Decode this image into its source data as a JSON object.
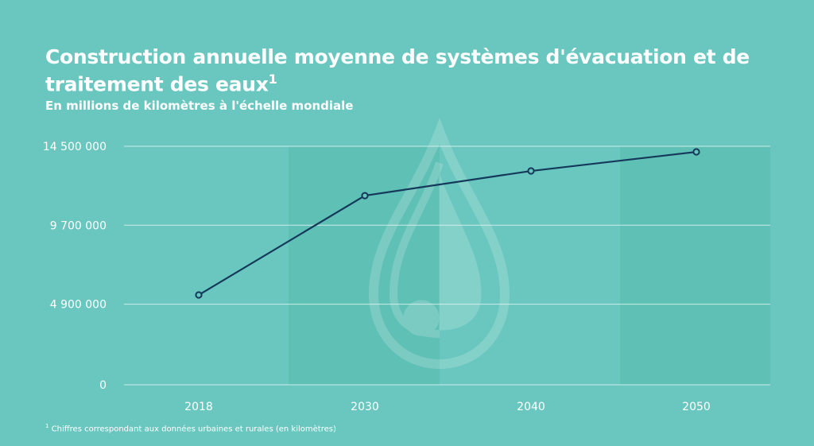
{
  "chart_data": {
    "type": "line",
    "title": "Construction annuelle moyenne de systèmes d'évacuation et de traitement des eaux",
    "title_superscript": "1",
    "subtitle": "En millions de kilomètres à l'échelle mondiale",
    "categories": [
      "2018",
      "2030",
      "2040",
      "2050"
    ],
    "values": [
      5460000,
      11500000,
      13000000,
      14160000
    ],
    "y_ticks": [
      0,
      4900000,
      9700000,
      14500000
    ],
    "y_tick_labels": [
      "0",
      "4 900 000",
      "9 700 000",
      "14 500 000"
    ],
    "ylim": [
      0,
      14500000
    ],
    "grid": true,
    "footnote_marker": "1",
    "footnote": "Chiffres correspondant aux données urbaines et rurales (en kilomètres)",
    "colors": {
      "background": "#69c7bf",
      "line": "#14395a",
      "band": "#5fc0b6",
      "grid": "#e6f6f4"
    }
  }
}
